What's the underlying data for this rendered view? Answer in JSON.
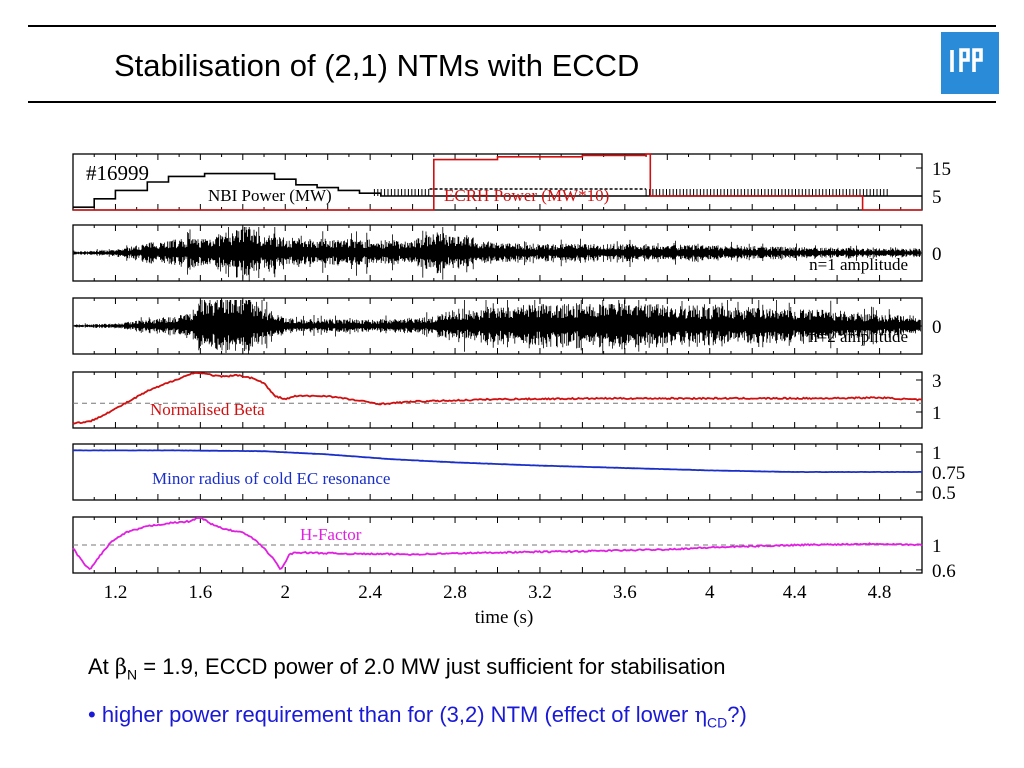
{
  "slide": {
    "title": "Stabilisation of (2,1) NTMs with ECCD",
    "logo_text": "IPP",
    "caption1": {
      "prefix": "At ",
      "beta": "β",
      "beta_sub": "N",
      "suffix": " = 1.9, ECCD power of 2.0 MW just sufficient for stabilisation"
    },
    "caption2": {
      "prefix": "• higher power requirement than for (3,2) NTM (effect of lower ",
      "eta": "η",
      "eta_sub": "CD",
      "suffix": "?)"
    }
  },
  "colors": {
    "black": "#000000",
    "red": "#d01010",
    "blue": "#1a2fc8",
    "magenta": "#e020e0",
    "logo": "#2a8bd9"
  },
  "chart_data": {
    "type": "line",
    "shot_label": "#16999",
    "xlabel": "time  (s)",
    "xlim": [
      1.0,
      5.0
    ],
    "x_ticks": [
      1.2,
      1.6,
      2,
      2.4,
      2.8,
      3.2,
      3.6,
      4,
      4.4,
      4.8
    ],
    "x_tick_labels": [
      "1.2",
      "1.6",
      "2",
      "2.4",
      "2.8",
      "3.2",
      "3.6",
      "4",
      "4.4",
      "4.8"
    ],
    "panels": [
      {
        "id": "power",
        "ylim": [
          0,
          20
        ],
        "y_ticks": [
          15,
          5
        ],
        "y_tick_labels": [
          "15",
          "5"
        ],
        "series": [
          {
            "name": "NBI Power (MW)",
            "color": "#000000",
            "style": "step",
            "x": [
              1.0,
              1.1,
              1.2,
              1.35,
              1.45,
              1.62,
              1.7,
              1.95,
              2.05,
              2.15,
              2.25,
              2.35,
              2.45,
              2.6,
              2.68,
              3.05,
              3.7,
              3.8,
              4.4,
              4.85,
              5.0
            ],
            "y": [
              1,
              4,
              7,
              10,
              12,
              13,
              13,
              11,
              9,
              8,
              7,
              6,
              5,
              5,
              5,
              5,
              5,
              5,
              5,
              5,
              5
            ],
            "notes": "modulated near 5 MW between t=2.4 and 4.85"
          },
          {
            "name": "ECRH Power (MW*10)",
            "color": "#d01010",
            "style": "step",
            "x": [
              1.0,
              2.68,
              2.7,
              3.0,
              3.4,
              3.7,
              3.72,
              4.7,
              4.72,
              5.0
            ],
            "y": [
              0,
              0,
              18,
              19,
              19.5,
              20,
              5,
              5,
              0,
              0
            ]
          }
        ]
      },
      {
        "id": "n1",
        "ylim": [
          -1,
          1
        ],
        "y_ticks": [
          0
        ],
        "y_tick_labels": [
          "0"
        ],
        "label": "n=1 amplitude",
        "series": [
          {
            "name": "n=1 amplitude",
            "color": "#000000",
            "style": "noise",
            "x": [
              1.0,
              1.2,
              1.4,
              1.6,
              1.75,
              1.82,
              1.9,
              2.0,
              2.3,
              2.6,
              2.7,
              2.85,
              2.95,
              3.2,
              3.6,
              4.0,
              4.4,
              4.8,
              5.0
            ],
            "envelope": [
              0.05,
              0.1,
              0.4,
              0.5,
              0.7,
              1.0,
              0.6,
              0.5,
              0.45,
              0.4,
              0.7,
              0.6,
              0.35,
              0.3,
              0.3,
              0.25,
              0.2,
              0.15,
              0.15
            ]
          }
        ]
      },
      {
        "id": "n2",
        "ylim": [
          -1,
          1
        ],
        "y_ticks": [
          0
        ],
        "y_tick_labels": [
          "0"
        ],
        "label": "n=2 amplitude",
        "series": [
          {
            "name": "n=2 amplitude",
            "color": "#000000",
            "style": "noise",
            "x": [
              1.0,
              1.2,
              1.4,
              1.55,
              1.62,
              1.7,
              1.85,
              1.95,
              2.0,
              2.4,
              2.7,
              2.8,
              3.0,
              3.4,
              3.8,
              4.2,
              4.6,
              4.9,
              5.0
            ],
            "envelope": [
              0.05,
              0.08,
              0.25,
              0.4,
              1.0,
              1.0,
              0.9,
              0.4,
              0.25,
              0.2,
              0.3,
              0.55,
              0.65,
              0.75,
              0.7,
              0.6,
              0.5,
              0.35,
              0.35
            ]
          }
        ]
      },
      {
        "id": "beta",
        "ylim": [
          0,
          3.5
        ],
        "y_ticks": [
          3,
          1
        ],
        "y_tick_labels": [
          "3",
          "1"
        ],
        "dashed_ref": 1.55,
        "label": "Normalised Beta",
        "series": [
          {
            "name": "Normalised Beta",
            "color": "#d01010",
            "style": "line",
            "x": [
              1.0,
              1.08,
              1.2,
              1.35,
              1.5,
              1.58,
              1.62,
              1.7,
              1.78,
              1.85,
              1.9,
              1.95,
              2.0,
              2.05,
              2.2,
              2.35,
              2.45,
              2.6,
              3.0,
              3.5,
              4.0,
              4.5,
              4.8,
              5.0
            ],
            "y": [
              0.3,
              0.4,
              1.2,
              2.3,
              3.1,
              3.5,
              3.4,
              3.2,
              3.3,
              3.1,
              2.8,
              2.0,
              1.8,
              2.0,
              2.0,
              1.7,
              1.5,
              1.65,
              1.8,
              1.85,
              1.85,
              1.85,
              1.9,
              1.75
            ]
          }
        ]
      },
      {
        "id": "minor_radius",
        "ylim": [
          0.4,
          1.1
        ],
        "y_ticks": [
          1,
          0.75,
          0.5
        ],
        "y_tick_labels": [
          "1",
          "0.75",
          "0.5"
        ],
        "label": "Minor radius of cold EC resonance",
        "series": [
          {
            "name": "Minor radius of cold EC resonance",
            "color": "#1a2fc8",
            "style": "line",
            "x": [
              1.0,
              1.5,
              1.9,
              2.2,
              2.5,
              2.8,
              3.2,
              3.6,
              4.0,
              4.4,
              4.8,
              5.0
            ],
            "y": [
              1.02,
              1.02,
              1.01,
              0.97,
              0.91,
              0.87,
              0.83,
              0.8,
              0.77,
              0.75,
              0.75,
              0.75
            ]
          }
        ]
      },
      {
        "id": "hfactor",
        "ylim": [
          0.55,
          1.45
        ],
        "y_ticks": [
          1,
          0.6
        ],
        "y_tick_labels": [
          "1",
          "0.6"
        ],
        "dashed_ref": 1.0,
        "label": "H-Factor",
        "series": [
          {
            "name": "H-Factor",
            "color": "#e020e0",
            "style": "line",
            "x": [
              1.0,
              1.04,
              1.08,
              1.12,
              1.18,
              1.25,
              1.35,
              1.45,
              1.55,
              1.6,
              1.66,
              1.72,
              1.8,
              1.85,
              1.9,
              1.95,
              1.98,
              2.02,
              2.05,
              2.3,
              2.6,
              3.0,
              3.4,
              3.8,
              4.0,
              4.4,
              4.8,
              5.0
            ],
            "y": [
              0.95,
              0.75,
              0.6,
              0.8,
              1.05,
              1.2,
              1.3,
              1.35,
              1.38,
              1.45,
              1.32,
              1.25,
              1.2,
              1.1,
              0.95,
              0.75,
              0.6,
              0.85,
              0.88,
              0.86,
              0.85,
              0.88,
              0.9,
              0.93,
              0.96,
              1.0,
              1.02,
              1.0
            ]
          }
        ]
      }
    ]
  }
}
